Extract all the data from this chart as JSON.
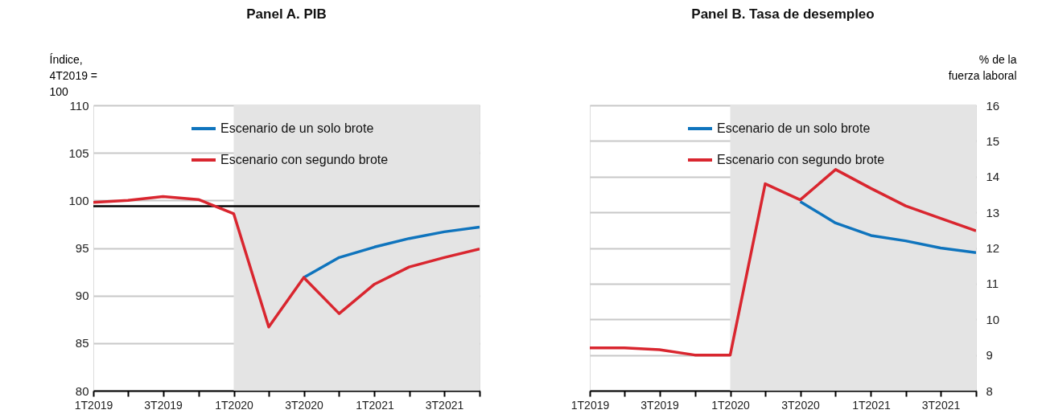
{
  "chart_data": [
    {
      "type": "line",
      "title": "Panel A. PIB",
      "ylabel": "Índice,\n4T2019 =\n100",
      "x": [
        "2019-01",
        "2019-04",
        "2019-07",
        "2019-10",
        "2020-01",
        "2020-04",
        "2020-07",
        "2020-10",
        "2021-01",
        "2021-04",
        "2021-07",
        "2021-10"
      ],
      "xlim": [
        "2019-01",
        "2021-10"
      ],
      "xticks": [
        {
          "value": "2019-01",
          "label": "1T2019"
        },
        {
          "value": "2019-04",
          "label": null
        },
        {
          "value": "2019-07",
          "label": "3T2019"
        },
        {
          "value": "2019-10",
          "label": null
        },
        {
          "value": "2020-01",
          "label": "1T2020"
        },
        {
          "value": "2020-04",
          "label": null
        },
        {
          "value": "2020-07",
          "label": "3T2020"
        },
        {
          "value": "2020-10",
          "label": null
        },
        {
          "value": "2021-01",
          "label": "1T2021"
        },
        {
          "value": "2021-04",
          "label": null
        },
        {
          "value": "2021-07",
          "label": "3T2021"
        },
        {
          "value": "2021-10",
          "label": null
        }
      ],
      "ylim": [
        80,
        110
      ],
      "yticks": [
        80,
        85,
        90,
        95,
        100,
        105,
        110
      ],
      "grid": "y",
      "legend": "top",
      "series": [
        {
          "name": "Escenario de un solo brote",
          "color": "#0f74bd",
          "values": [
            null,
            null,
            null,
            null,
            null,
            null,
            91.9,
            94.0,
            95.1,
            96.0,
            96.7,
            97.2
          ]
        },
        {
          "name": "Escenario con segundo brote",
          "color": "#d9262f",
          "values": [
            99.8,
            100.0,
            100.4,
            100.1,
            98.6,
            86.7,
            91.9,
            88.1,
            91.2,
            93.0,
            94.0,
            94.9
          ]
        }
      ],
      "ref_lines": [
        {
          "axis": "y",
          "value": 99.4,
          "color": "#000000"
        }
      ],
      "bands": [
        {
          "axis": "x",
          "from": "2020-01",
          "to": "2021-10",
          "color": "#e4e4e4"
        }
      ]
    },
    {
      "type": "line",
      "title": "Panel B. Tasa de desempleo",
      "y2label": "% de la\nfuerza laboral",
      "x": [
        "2019-01",
        "2019-04",
        "2019-07",
        "2019-10",
        "2020-01",
        "2020-04",
        "2020-07",
        "2020-10",
        "2021-01",
        "2021-04",
        "2021-07",
        "2021-10"
      ],
      "xlim": [
        "2019-01",
        "2021-10"
      ],
      "xticks": [
        {
          "value": "2019-01",
          "label": "1T2019"
        },
        {
          "value": "2019-04",
          "label": null
        },
        {
          "value": "2019-07",
          "label": "3T2019"
        },
        {
          "value": "2019-10",
          "label": null
        },
        {
          "value": "2020-01",
          "label": "1T2020"
        },
        {
          "value": "2020-04",
          "label": null
        },
        {
          "value": "2020-07",
          "label": "3T2020"
        },
        {
          "value": "2020-10",
          "label": null
        },
        {
          "value": "2021-01",
          "label": "1T2021"
        },
        {
          "value": "2021-04",
          "label": null
        },
        {
          "value": "2021-07",
          "label": "3T2021"
        },
        {
          "value": "2021-10",
          "label": null
        }
      ],
      "y2lim": [
        8,
        16
      ],
      "y2ticks": [
        8,
        9,
        10,
        11,
        12,
        13,
        14,
        15,
        16
      ],
      "grid": "y",
      "legend": "top",
      "series": [
        {
          "name": "Escenario de un solo brote",
          "color": "#0f74bd",
          "axis": "y2",
          "values": [
            null,
            null,
            null,
            null,
            null,
            null,
            13.3,
            12.7,
            12.35,
            12.2,
            12.0,
            11.87
          ]
        },
        {
          "name": "Escenario con segundo brote",
          "color": "#d9262f",
          "axis": "y2",
          "values": [
            9.2,
            9.2,
            9.15,
            9.0,
            9.0,
            13.8,
            13.35,
            14.2,
            13.67,
            13.18,
            12.83,
            12.48
          ]
        }
      ],
      "bands": [
        {
          "axis": "x",
          "from": "2020-01",
          "to": "2021-10",
          "color": "#e4e4e4"
        }
      ]
    }
  ]
}
